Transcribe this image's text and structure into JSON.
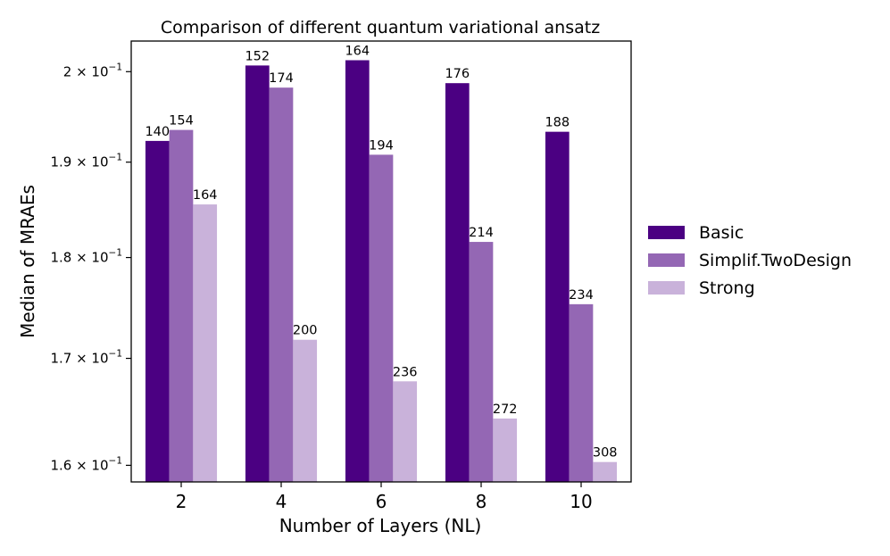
{
  "chart_data": {
    "type": "bar",
    "title": "Comparison of different quantum variational ansatz",
    "xlabel": "Number of Layers (NL)",
    "ylabel": "Median of MRAEs",
    "yscale": "log",
    "ylim": [
      0.1585,
      0.2035
    ],
    "categories": [
      "2",
      "4",
      "6",
      "8",
      "10"
    ],
    "yticks": [
      {
        "value": 0.16,
        "mantissa": "1.6",
        "exponent": "−1"
      },
      {
        "value": 0.17,
        "mantissa": "1.7",
        "exponent": "−1"
      },
      {
        "value": 0.18,
        "mantissa": "1.8",
        "exponent": "−1"
      },
      {
        "value": 0.19,
        "mantissa": "1.9",
        "exponent": "−1"
      },
      {
        "value": 0.2,
        "mantissa": "2",
        "exponent": "−1"
      }
    ],
    "legend_position": "right",
    "series": [
      {
        "name": "Basic",
        "color": "#4b0082",
        "values": [
          0.1923,
          0.2007,
          0.2013,
          0.1987,
          0.1933
        ],
        "labels": [
          "140",
          "152",
          "164",
          "176",
          "188"
        ]
      },
      {
        "name": "Simplif.TwoDesign",
        "color": "#9467b4",
        "values": [
          0.1935,
          0.1982,
          0.1908,
          0.1816,
          0.1753
        ],
        "labels": [
          "154",
          "174",
          "194",
          "214",
          "234"
        ]
      },
      {
        "name": "Strong",
        "color": "#c9b2da",
        "values": [
          0.1855,
          0.1718,
          0.1678,
          0.1643,
          0.1603
        ],
        "labels": [
          "164",
          "200",
          "236",
          "272",
          "308"
        ]
      }
    ]
  }
}
